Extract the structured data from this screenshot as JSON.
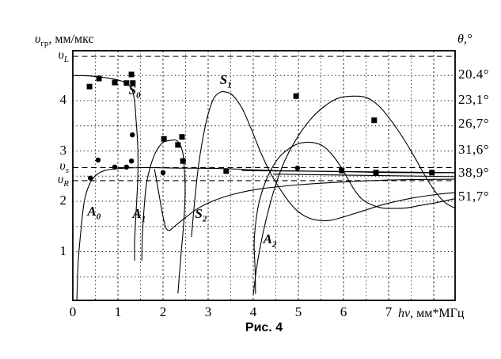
{
  "figure": {
    "caption": "Рис. 4",
    "background": "#ffffff",
    "ink": "#000000"
  },
  "chart_data": {
    "type": "line",
    "title": "Рис. 4",
    "xlabel_italic": "hν",
    "xlabel_rest": ", мм*МГц",
    "ylabel_base": "υ",
    "ylabel_sub": "гр",
    "ylabel_rest": ", мм/мкс",
    "right_axis_title": "θ,°",
    "xlim": [
      0,
      8.46
    ],
    "ylim": [
      0,
      4.96
    ],
    "x_ticks": [
      0,
      1,
      2,
      3,
      4,
      5,
      6,
      7
    ],
    "y_ticks": [
      1,
      2,
      3,
      4
    ],
    "grid": {
      "x_step": 0.5,
      "y_step": 0.5,
      "style": "dotted",
      "on": true
    },
    "reference_lines": [
      {
        "base": "υ",
        "sub": "L",
        "v": 4.88,
        "style": "dashed"
      },
      {
        "base": "υ",
        "sub": "s",
        "v": 2.67,
        "style": "dashed"
      },
      {
        "base": "υ",
        "sub": "R",
        "v": 2.41,
        "style": "dashed"
      }
    ],
    "right_axis_labels": [
      {
        "text": "20.4°",
        "v": 4.52
      },
      {
        "text": "23,1°",
        "v": 4.02
      },
      {
        "text": "26,7°",
        "v": 3.54
      },
      {
        "text": "31,6°",
        "v": 3.03
      },
      {
        "text": "38,9°",
        "v": 2.56
      },
      {
        "text": "51,7°",
        "v": 2.09
      }
    ],
    "mode_labels": [
      {
        "main": "S",
        "sub": "0",
        "x": 1.37,
        "v": 4.19
      },
      {
        "main": "S",
        "sub": "1",
        "x": 3.39,
        "v": 4.39
      },
      {
        "main": "S",
        "sub": "2",
        "x": 2.84,
        "v": 1.73
      },
      {
        "main": "A",
        "sub": "0",
        "x": 0.47,
        "v": 1.78
      },
      {
        "main": "A",
        "sub": "1",
        "x": 1.47,
        "v": 1.73
      },
      {
        "main": "A",
        "sub": "2",
        "x": 4.37,
        "v": 1.23
      }
    ],
    "series": [
      {
        "name": "A0",
        "points": [
          [
            0.09,
            0.03
          ],
          [
            0.12,
            0.8
          ],
          [
            0.18,
            1.43
          ],
          [
            0.25,
            1.98
          ],
          [
            0.35,
            2.3
          ],
          [
            0.49,
            2.5
          ],
          [
            0.7,
            2.61
          ],
          [
            1.02,
            2.65
          ],
          [
            1.54,
            2.67
          ],
          [
            2.25,
            2.66
          ],
          [
            3.3,
            2.65
          ],
          [
            4.53,
            2.61
          ],
          [
            5.93,
            2.59
          ],
          [
            7.16,
            2.57
          ],
          [
            8.46,
            2.57
          ]
        ]
      },
      {
        "name": "S0",
        "points": [
          [
            0,
            4.5
          ],
          [
            0.4,
            4.49
          ],
          [
            0.84,
            4.44
          ],
          [
            1.11,
            4.38
          ],
          [
            1.25,
            4.3
          ],
          [
            1.33,
            4.17
          ],
          [
            1.37,
            3.98
          ],
          [
            1.4,
            3.64
          ],
          [
            1.44,
            3.09
          ],
          [
            1.44,
            2.46
          ],
          [
            1.4,
            1.75
          ],
          [
            1.37,
            1.2
          ],
          [
            1.37,
            0.82
          ]
        ]
      },
      {
        "name": "A1",
        "points": [
          [
            1.53,
            0.82
          ],
          [
            1.54,
            1.28
          ],
          [
            1.58,
            1.87
          ],
          [
            1.63,
            2.33
          ],
          [
            1.72,
            2.69
          ],
          [
            1.84,
            2.98
          ],
          [
            2.0,
            3.17
          ],
          [
            2.16,
            3.21
          ],
          [
            2.3,
            3.21
          ],
          [
            2.39,
            3.1
          ],
          [
            2.44,
            2.95
          ],
          [
            2.47,
            2.66
          ],
          [
            2.49,
            2.22
          ],
          [
            2.46,
            1.59
          ],
          [
            2.4,
            0.96
          ],
          [
            2.35,
            0.41
          ],
          [
            2.33,
            0.17
          ]
        ]
      },
      {
        "name": "S2",
        "points": [
          [
            1.81,
            2.64
          ],
          [
            1.91,
            2.14
          ],
          [
            1.98,
            1.78
          ],
          [
            2.04,
            1.54
          ],
          [
            2.07,
            1.46
          ],
          [
            2.14,
            1.42
          ],
          [
            2.25,
            1.5
          ],
          [
            2.46,
            1.65
          ],
          [
            2.74,
            1.84
          ],
          [
            3.09,
            2.0
          ],
          [
            3.56,
            2.14
          ],
          [
            4.18,
            2.25
          ],
          [
            5.05,
            2.33
          ],
          [
            6.11,
            2.39
          ],
          [
            7.33,
            2.43
          ],
          [
            8.46,
            2.44
          ]
        ]
      },
      {
        "name": "S1",
        "points": [
          [
            2.63,
            1.29
          ],
          [
            2.7,
            2.0
          ],
          [
            2.8,
            2.8
          ],
          [
            2.95,
            3.55
          ],
          [
            3.1,
            4.0
          ],
          [
            3.25,
            4.16
          ],
          [
            3.4,
            4.17
          ],
          [
            3.55,
            4.1
          ],
          [
            3.75,
            3.85
          ],
          [
            3.95,
            3.45
          ],
          [
            4.2,
            2.9
          ],
          [
            4.45,
            2.45
          ],
          [
            4.7,
            2.1
          ],
          [
            4.95,
            1.83
          ],
          [
            5.2,
            1.68
          ],
          [
            5.45,
            1.62
          ],
          [
            5.7,
            1.62
          ],
          [
            6.0,
            1.69
          ],
          [
            6.4,
            1.8
          ],
          [
            6.9,
            1.94
          ],
          [
            7.5,
            2.06
          ],
          [
            8.1,
            2.14
          ],
          [
            8.46,
            2.17
          ]
        ]
      },
      {
        "name": "S2-hump",
        "points": [
          [
            4.05,
            0.16
          ],
          [
            4.04,
            0.65
          ],
          [
            4.02,
            1.12
          ],
          [
            4.04,
            1.46
          ],
          [
            4.12,
            1.94
          ],
          [
            4.28,
            2.41
          ],
          [
            4.51,
            2.8
          ],
          [
            4.75,
            3.02
          ],
          [
            5.02,
            3.15
          ],
          [
            5.3,
            3.17
          ],
          [
            5.56,
            3.09
          ],
          [
            5.79,
            2.88
          ],
          [
            6.0,
            2.6
          ],
          [
            6.21,
            2.27
          ],
          [
            6.4,
            2.05
          ],
          [
            6.6,
            1.94
          ],
          [
            6.84,
            1.87
          ],
          [
            7.12,
            1.86
          ],
          [
            7.4,
            1.87
          ],
          [
            7.72,
            1.92
          ],
          [
            8.09,
            1.98
          ],
          [
            8.46,
            2.05
          ]
        ]
      },
      {
        "name": "A2",
        "points": [
          [
            4.0,
            0.14
          ],
          [
            4.07,
            0.65
          ],
          [
            4.16,
            1.12
          ],
          [
            4.28,
            1.62
          ],
          [
            4.46,
            2.22
          ],
          [
            4.68,
            2.77
          ],
          [
            4.95,
            3.23
          ],
          [
            5.25,
            3.61
          ],
          [
            5.58,
            3.89
          ],
          [
            5.89,
            4.05
          ],
          [
            6.21,
            4.09
          ],
          [
            6.51,
            4.06
          ],
          [
            6.79,
            3.89
          ],
          [
            7.05,
            3.61
          ],
          [
            7.32,
            3.26
          ],
          [
            7.58,
            2.87
          ],
          [
            7.82,
            2.49
          ],
          [
            8.05,
            2.17
          ],
          [
            8.26,
            1.97
          ],
          [
            8.46,
            1.87
          ]
        ]
      },
      {
        "name": "asymptote-1",
        "points": [
          [
            3.74,
            2.61
          ],
          [
            8.46,
            2.57
          ]
        ]
      },
      {
        "name": "asymptote-2",
        "points": [
          [
            4.44,
            2.54
          ],
          [
            8.46,
            2.49
          ]
        ]
      }
    ],
    "scatter": [
      {
        "name": "experimental-squares",
        "marker": "square",
        "points": [
          [
            0.37,
            4.28
          ],
          [
            0.58,
            4.44
          ],
          [
            0.93,
            4.36
          ],
          [
            1.19,
            4.35
          ],
          [
            1.33,
            4.35
          ],
          [
            1.3,
            4.52
          ],
          [
            2.02,
            3.24
          ],
          [
            2.42,
            3.28
          ],
          [
            2.33,
            3.12
          ],
          [
            2.44,
            2.8
          ],
          [
            3.4,
            2.6
          ],
          [
            4.95,
            4.09
          ],
          [
            6.68,
            3.61
          ],
          [
            5.96,
            2.61
          ],
          [
            6.72,
            2.57
          ],
          [
            7.96,
            2.57
          ]
        ]
      },
      {
        "name": "experimental-circles",
        "marker": "circle",
        "points": [
          [
            0.56,
            2.82
          ],
          [
            1.32,
            3.32
          ],
          [
            0.39,
            2.46
          ],
          [
            0.93,
            2.68
          ],
          [
            1.19,
            2.68
          ],
          [
            1.3,
            2.8
          ],
          [
            2.0,
            2.57
          ],
          [
            4.98,
            2.66
          ]
        ]
      }
    ]
  }
}
